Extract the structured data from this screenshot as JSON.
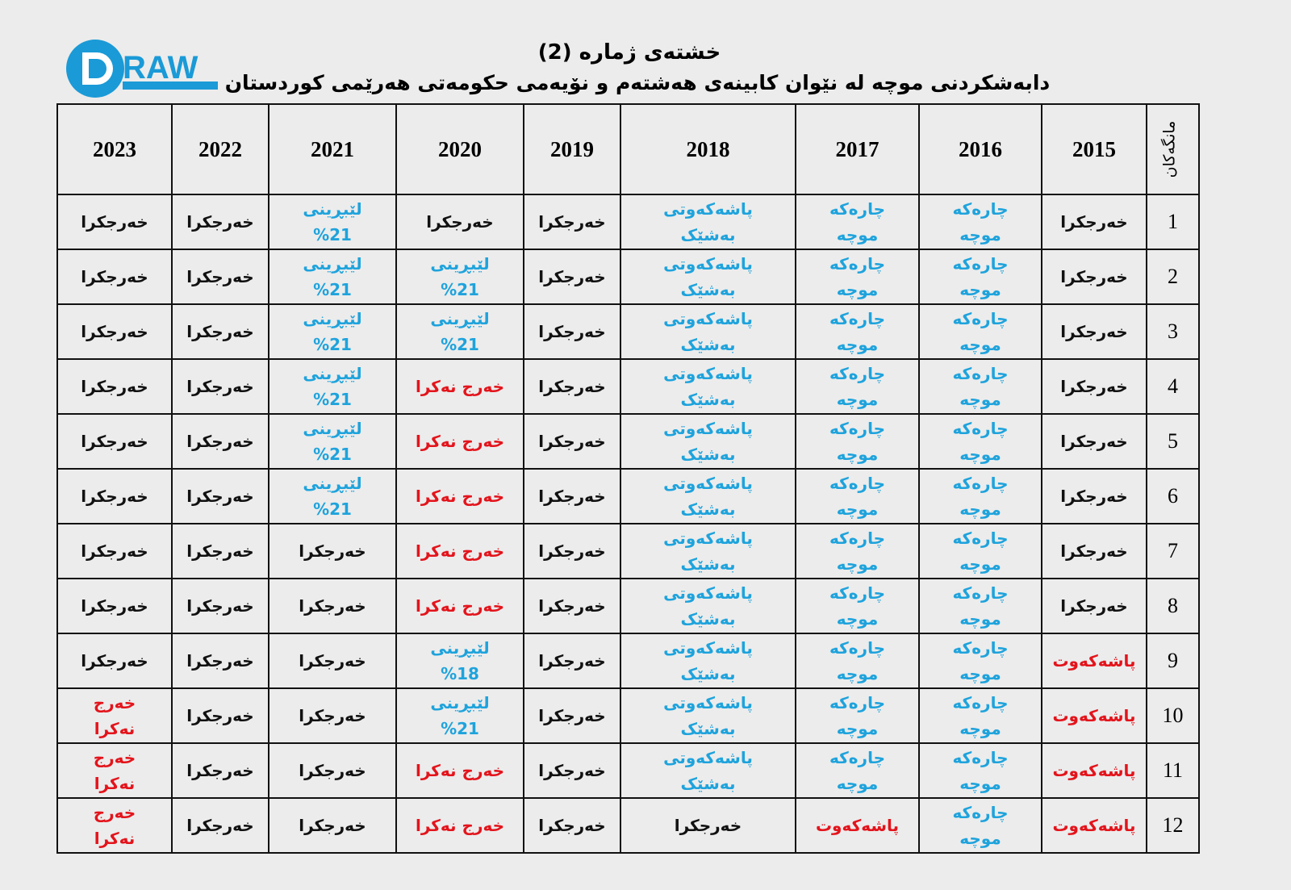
{
  "logo": {
    "text": "DRAW",
    "color": "#1a9ad6"
  },
  "title": "خشتەی ژمارە (2)",
  "subtitle": "دابەشکردنی موچە لە نێوان کابینەی  هەشتەم و نۆیەمی حکومەتی هەرێمی کوردستان",
  "colors": {
    "black": "#111111",
    "blue": "#1fa3dc",
    "red": "#e3141b"
  },
  "table": {
    "month_header": "مانگەکان",
    "years": [
      "2015",
      "2016",
      "2017",
      "2018",
      "2019",
      "2020",
      "2021",
      "2022",
      "2023"
    ],
    "rows": [
      {
        "month": "1",
        "cells": [
          [
            "خەرجکرا",
            "black"
          ],
          [
            "چارەکە\nموچە",
            "blue"
          ],
          [
            "چارەکە\nموچە",
            "blue"
          ],
          [
            "پاشەکەوتی\nبەشێک",
            "blue"
          ],
          [
            "خەرجکرا",
            "black"
          ],
          [
            "خەرجکرا",
            "black"
          ],
          [
            "لێبڕینی\n%21",
            "blue"
          ],
          [
            "خەرجکرا",
            "black"
          ],
          [
            "خەرجکرا",
            "black"
          ]
        ]
      },
      {
        "month": "2",
        "cells": [
          [
            "خەرجکرا",
            "black"
          ],
          [
            "چارەکە\nموچە",
            "blue"
          ],
          [
            "چارەکە\nموچە",
            "blue"
          ],
          [
            "پاشەکەوتی\nبەشێک",
            "blue"
          ],
          [
            "خەرجکرا",
            "black"
          ],
          [
            "لێبڕینی\n%21",
            "blue"
          ],
          [
            "لێبڕینی\n%21",
            "blue"
          ],
          [
            "خەرجکرا",
            "black"
          ],
          [
            "خەرجکرا",
            "black"
          ]
        ]
      },
      {
        "month": "3",
        "cells": [
          [
            "خەرجکرا",
            "black"
          ],
          [
            "چارەکە\nموچە",
            "blue"
          ],
          [
            "چارەکە\nموچە",
            "blue"
          ],
          [
            "پاشەکەوتی\nبەشێک",
            "blue"
          ],
          [
            "خەرجکرا",
            "black"
          ],
          [
            "لێبڕینی\n%21",
            "blue"
          ],
          [
            "لێبڕینی\n%21",
            "blue"
          ],
          [
            "خەرجکرا",
            "black"
          ],
          [
            "خەرجکرا",
            "black"
          ]
        ]
      },
      {
        "month": "4",
        "cells": [
          [
            "خەرجکرا",
            "black"
          ],
          [
            "چارەکە\nموچە",
            "blue"
          ],
          [
            "چارەکە\nموچە",
            "blue"
          ],
          [
            "پاشەکەوتی\nبەشێک",
            "blue"
          ],
          [
            "خەرجکرا",
            "black"
          ],
          [
            "خەرج نەکرا",
            "red"
          ],
          [
            "لێبڕینی\n%21",
            "blue"
          ],
          [
            "خەرجکرا",
            "black"
          ],
          [
            "خەرجکرا",
            "black"
          ]
        ]
      },
      {
        "month": "5",
        "cells": [
          [
            "خەرجکرا",
            "black"
          ],
          [
            "چارەکە\nموچە",
            "blue"
          ],
          [
            "چارەکە\nموچە",
            "blue"
          ],
          [
            "پاشەکەوتی\nبەشێک",
            "blue"
          ],
          [
            "خەرجکرا",
            "black"
          ],
          [
            "خەرج نەکرا",
            "red"
          ],
          [
            "لێبڕینی\n%21",
            "blue"
          ],
          [
            "خەرجکرا",
            "black"
          ],
          [
            "خەرجکرا",
            "black"
          ]
        ]
      },
      {
        "month": "6",
        "cells": [
          [
            "خەرجکرا",
            "black"
          ],
          [
            "چارەکە\nموچە",
            "blue"
          ],
          [
            "چارەکە\nموچە",
            "blue"
          ],
          [
            "پاشەکەوتی\nبەشێک",
            "blue"
          ],
          [
            "خەرجکرا",
            "black"
          ],
          [
            "خەرج نەکرا",
            "red"
          ],
          [
            "لێبڕینی\n%21",
            "blue"
          ],
          [
            "خەرجکرا",
            "black"
          ],
          [
            "خەرجکرا",
            "black"
          ]
        ]
      },
      {
        "month": "7",
        "cells": [
          [
            "خەرجکرا",
            "black"
          ],
          [
            "چارەکە\nموچە",
            "blue"
          ],
          [
            "چارەکە\nموچە",
            "blue"
          ],
          [
            "پاشەکەوتی\nبەشێک",
            "blue"
          ],
          [
            "خەرجکرا",
            "black"
          ],
          [
            "خەرج نەکرا",
            "red"
          ],
          [
            "خەرجکرا",
            "black"
          ],
          [
            "خەرجکرا",
            "black"
          ],
          [
            "خەرجکرا",
            "black"
          ]
        ]
      },
      {
        "month": "8",
        "cells": [
          [
            "خەرجکرا",
            "black"
          ],
          [
            "چارەکە\nموچە",
            "blue"
          ],
          [
            "چارەکە\nموچە",
            "blue"
          ],
          [
            "پاشەکەوتی\nبەشێک",
            "blue"
          ],
          [
            "خەرجکرا",
            "black"
          ],
          [
            "خەرج نەکرا",
            "red"
          ],
          [
            "خەرجکرا",
            "black"
          ],
          [
            "خەرجکرا",
            "black"
          ],
          [
            "خەرجکرا",
            "black"
          ]
        ]
      },
      {
        "month": "9",
        "cells": [
          [
            "پاشەکەوت",
            "red"
          ],
          [
            "چارەکە\nموچە",
            "blue"
          ],
          [
            "چارەکە\nموچە",
            "blue"
          ],
          [
            "پاشەکەوتی\nبەشێک",
            "blue"
          ],
          [
            "خەرجکرا",
            "black"
          ],
          [
            "لێبڕینی\n%18",
            "blue"
          ],
          [
            "خەرجکرا",
            "black"
          ],
          [
            "خەرجکرا",
            "black"
          ],
          [
            "خەرجکرا",
            "black"
          ]
        ]
      },
      {
        "month": "10",
        "cells": [
          [
            "پاشەکەوت",
            "red"
          ],
          [
            "چارەکە\nموچە",
            "blue"
          ],
          [
            "چارەکە\nموچە",
            "blue"
          ],
          [
            "پاشەکەوتی\nبەشێک",
            "blue"
          ],
          [
            "خەرجکرا",
            "black"
          ],
          [
            "لێبڕینی\n%21",
            "blue"
          ],
          [
            "خەرجکرا",
            "black"
          ],
          [
            "خەرجکرا",
            "black"
          ],
          [
            "خەرج\nنەکرا",
            "red"
          ]
        ]
      },
      {
        "month": "11",
        "cells": [
          [
            "پاشەکەوت",
            "red"
          ],
          [
            "چارەکە\nموچە",
            "blue"
          ],
          [
            "چارەکە\nموچە",
            "blue"
          ],
          [
            "پاشەکەوتی\nبەشێک",
            "blue"
          ],
          [
            "خەرجکرا",
            "black"
          ],
          [
            "خەرج نەکرا",
            "red"
          ],
          [
            "خەرجکرا",
            "black"
          ],
          [
            "خەرجکرا",
            "black"
          ],
          [
            "خەرج\nنەکرا",
            "red"
          ]
        ]
      },
      {
        "month": "12",
        "cells": [
          [
            "پاشەکەوت",
            "red"
          ],
          [
            "چارەکە\nموچە",
            "blue"
          ],
          [
            "پاشەکەوت",
            "red"
          ],
          [
            "خەرجکرا",
            "black"
          ],
          [
            "خەرجکرا",
            "black"
          ],
          [
            "خەرج نەکرا",
            "red"
          ],
          [
            "خەرجکرا",
            "black"
          ],
          [
            "خەرجکرا",
            "black"
          ],
          [
            "خەرج\nنەکرا",
            "red"
          ]
        ]
      }
    ]
  }
}
